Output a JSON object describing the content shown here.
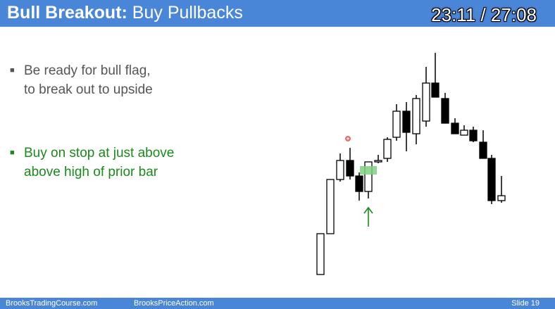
{
  "header": {
    "title_bold": "Bull Breakout:",
    "title_rest": " Buy Pullbacks",
    "timer": "23:11 / 27:08"
  },
  "bullets": [
    {
      "line1": "Be ready for bull flag,",
      "line2": "to break out to upside"
    },
    {
      "line1": "Buy on stop at just above",
      "line2": "above high of prior bar"
    }
  ],
  "footer": {
    "site1": "BrooksTradingCourse.com",
    "site2": "BrooksPriceAction.com",
    "slide": "Slide 19"
  },
  "colors": {
    "accent": "#4a86d8",
    "bull_text": "#1a8a1a",
    "entry_highlight": "#7fd07f",
    "marker": "#e05050"
  }
}
